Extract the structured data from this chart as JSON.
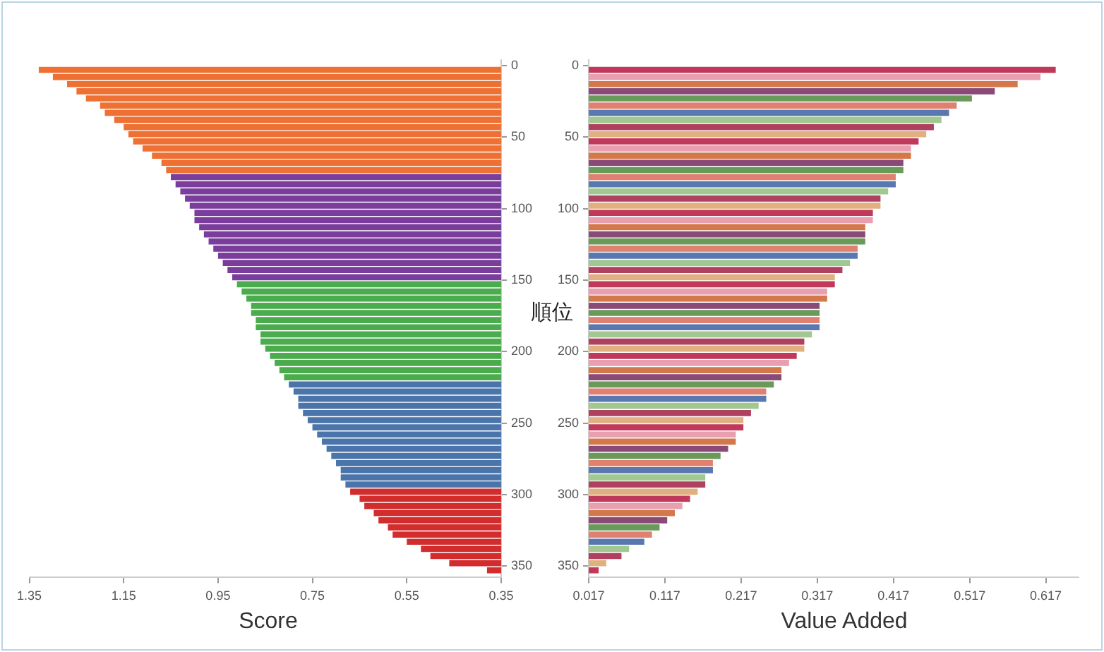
{
  "chart_data": [
    {
      "type": "bar",
      "orientation": "horizontal",
      "xlabel": "Score",
      "x": [
        3,
        8,
        13,
        18,
        23,
        28,
        33,
        38,
        43,
        48,
        53,
        58,
        63,
        68,
        73,
        78,
        83,
        88,
        93,
        98,
        103,
        108,
        113,
        118,
        123,
        128,
        133,
        138,
        143,
        148,
        153,
        158,
        163,
        168,
        173,
        178,
        183,
        188,
        193,
        198,
        203,
        208,
        213,
        218,
        223,
        228,
        233,
        238,
        243,
        248,
        253,
        258,
        263,
        268,
        273,
        278,
        283,
        288,
        293,
        298,
        303,
        308,
        313,
        318,
        323,
        328,
        333,
        338,
        343,
        348,
        353
      ],
      "values": [
        1.33,
        1.3,
        1.27,
        1.25,
        1.23,
        1.2,
        1.19,
        1.17,
        1.15,
        1.14,
        1.13,
        1.11,
        1.09,
        1.07,
        1.06,
        1.05,
        1.04,
        1.03,
        1.02,
        1.01,
        1.0,
        1.0,
        0.99,
        0.98,
        0.97,
        0.96,
        0.95,
        0.94,
        0.93,
        0.92,
        0.91,
        0.9,
        0.89,
        0.88,
        0.88,
        0.87,
        0.87,
        0.86,
        0.86,
        0.85,
        0.84,
        0.83,
        0.82,
        0.81,
        0.8,
        0.79,
        0.78,
        0.78,
        0.77,
        0.76,
        0.75,
        0.74,
        0.73,
        0.72,
        0.71,
        0.7,
        0.69,
        0.69,
        0.68,
        0.67,
        0.65,
        0.64,
        0.62,
        0.61,
        0.59,
        0.58,
        0.55,
        0.52,
        0.5,
        0.46,
        0.38
      ],
      "colors": [
        "#ee7032",
        "#ee7032",
        "#ee7032",
        "#ee7032",
        "#ee7032",
        "#ee7032",
        "#ee7032",
        "#ee7032",
        "#ee7032",
        "#ee7032",
        "#ee7032",
        "#ee7032",
        "#ee7032",
        "#ee7032",
        "#ee7032",
        "#7a3d9c",
        "#7a3d9c",
        "#7a3d9c",
        "#7a3d9c",
        "#7a3d9c",
        "#7a3d9c",
        "#7a3d9c",
        "#7a3d9c",
        "#7a3d9c",
        "#7a3d9c",
        "#7a3d9c",
        "#7a3d9c",
        "#7a3d9c",
        "#7a3d9c",
        "#7a3d9c",
        "#4aac4c",
        "#4aac4c",
        "#4aac4c",
        "#4aac4c",
        "#4aac4c",
        "#4aac4c",
        "#4aac4c",
        "#4aac4c",
        "#4aac4c",
        "#4aac4c",
        "#4aac4c",
        "#4aac4c",
        "#4aac4c",
        "#4aac4c",
        "#4a74aa",
        "#4a74aa",
        "#4a74aa",
        "#4a74aa",
        "#4a74aa",
        "#4a74aa",
        "#4a74aa",
        "#4a74aa",
        "#4a74aa",
        "#4a74aa",
        "#4a74aa",
        "#4a74aa",
        "#4a74aa",
        "#4a74aa",
        "#4a74aa",
        "#d22c2c",
        "#d22c2c",
        "#d22c2c",
        "#d22c2c",
        "#d22c2c",
        "#d22c2c",
        "#d22c2c",
        "#d22c2c",
        "#d22c2c",
        "#d22c2c",
        "#d22c2c",
        "#d22c2c"
      ],
      "xlim": [
        1.35,
        0.35
      ],
      "xticks": [
        1.35,
        1.15,
        0.95,
        0.75,
        0.55,
        0.35
      ],
      "ylim": [
        358,
        -4
      ],
      "yticks": [
        0,
        50,
        100,
        150,
        200,
        250,
        300,
        350
      ]
    },
    {
      "type": "bar",
      "orientation": "horizontal",
      "xlabel": "Value Added",
      "ylabel": "順位",
      "x": [
        3,
        8,
        13,
        18,
        23,
        28,
        33,
        38,
        43,
        48,
        53,
        58,
        63,
        68,
        73,
        78,
        83,
        88,
        93,
        98,
        103,
        108,
        113,
        118,
        123,
        128,
        133,
        138,
        143,
        148,
        153,
        158,
        163,
        168,
        173,
        178,
        183,
        188,
        193,
        198,
        203,
        208,
        213,
        218,
        223,
        228,
        233,
        238,
        243,
        248,
        253,
        258,
        263,
        268,
        273,
        278,
        283,
        288,
        293,
        298,
        303,
        308,
        313,
        318,
        323,
        328,
        333,
        338,
        343,
        348,
        353
      ],
      "values": [
        0.63,
        0.61,
        0.58,
        0.55,
        0.52,
        0.5,
        0.49,
        0.48,
        0.47,
        0.46,
        0.45,
        0.44,
        0.44,
        0.43,
        0.43,
        0.42,
        0.42,
        0.41,
        0.4,
        0.4,
        0.39,
        0.39,
        0.38,
        0.38,
        0.38,
        0.37,
        0.37,
        0.36,
        0.35,
        0.34,
        0.34,
        0.33,
        0.33,
        0.32,
        0.32,
        0.32,
        0.32,
        0.31,
        0.3,
        0.3,
        0.29,
        0.28,
        0.27,
        0.27,
        0.26,
        0.25,
        0.25,
        0.24,
        0.23,
        0.22,
        0.22,
        0.21,
        0.21,
        0.2,
        0.19,
        0.18,
        0.18,
        0.17,
        0.17,
        0.16,
        0.15,
        0.14,
        0.13,
        0.12,
        0.11,
        0.1,
        0.09,
        0.07,
        0.06,
        0.04,
        0.03
      ],
      "colors": [
        "#c0395a",
        "#e8a0b0",
        "#d2784a",
        "#8a4a78",
        "#6a9a5a",
        "#e08070",
        "#5a78b0",
        "#a0c890",
        "#b04060",
        "#e0b080",
        "#c0395a",
        "#e8a0b0",
        "#d2784a",
        "#8a4a78",
        "#6a9a5a",
        "#e08070",
        "#5a78b0",
        "#a0c890",
        "#b04060",
        "#e0b080",
        "#c0395a",
        "#e8a0b0",
        "#d2784a",
        "#8a4a78",
        "#6a9a5a",
        "#e08070",
        "#5a78b0",
        "#a0c890",
        "#b04060",
        "#e0b080",
        "#c0395a",
        "#e8a0b0",
        "#d2784a",
        "#8a4a78",
        "#6a9a5a",
        "#e08070",
        "#5a78b0",
        "#a0c890",
        "#b04060",
        "#e0b080",
        "#c0395a",
        "#e8a0b0",
        "#d2784a",
        "#8a4a78",
        "#6a9a5a",
        "#e08070",
        "#5a78b0",
        "#a0c890",
        "#b04060",
        "#e0b080",
        "#c0395a",
        "#e8a0b0",
        "#d2784a",
        "#8a4a78",
        "#6a9a5a",
        "#e08070",
        "#5a78b0",
        "#a0c890",
        "#b04060",
        "#e0b080",
        "#c0395a",
        "#e8a0b0",
        "#d2784a",
        "#8a4a78",
        "#6a9a5a",
        "#e08070",
        "#5a78b0",
        "#a0c890",
        "#b04060",
        "#e0b080",
        "#c0395a"
      ],
      "xlim": [
        0.017,
        0.66
      ],
      "xticks": [
        0.017,
        0.117,
        0.217,
        0.317,
        0.417,
        0.517,
        0.617
      ],
      "ylim": [
        358,
        -4
      ],
      "yticks": [
        0,
        50,
        100,
        150,
        200,
        250,
        300,
        350
      ]
    }
  ]
}
